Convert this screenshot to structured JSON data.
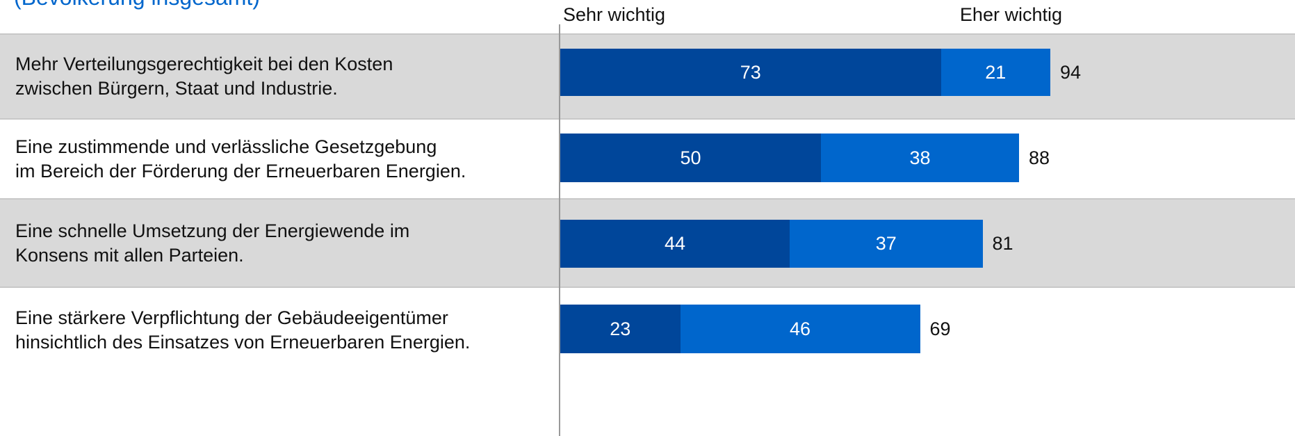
{
  "chart_data": {
    "type": "stacked-bar-horizontal",
    "subtitle": "(Bevölkerung insgesamt)",
    "categories": [
      "Mehr Verteilungsgerechtigkeit bei den Kosten\nzwischen Bürgern, Staat und Industrie.",
      "Eine zustimmende und verlässliche Gesetzgebung\nim Bereich der Förderung der Erneuerbaren Energien.",
      "Eine schnelle Umsetzung der Energiewende im\nKonsens mit allen Parteien.",
      "Eine stärkere Verpflichtung der Gebäudeeigentümer\nhinsichtlich des Einsatzes von Erneuerbaren Energien."
    ],
    "series": [
      {
        "name": "Sehr wichtig",
        "color": "#00469a",
        "values": [
          73,
          50,
          44,
          23
        ]
      },
      {
        "name": "Eher wichtig",
        "color": "#0066cc",
        "values": [
          21,
          38,
          37,
          46
        ]
      }
    ],
    "totals": [
      94,
      88,
      81,
      69
    ]
  }
}
